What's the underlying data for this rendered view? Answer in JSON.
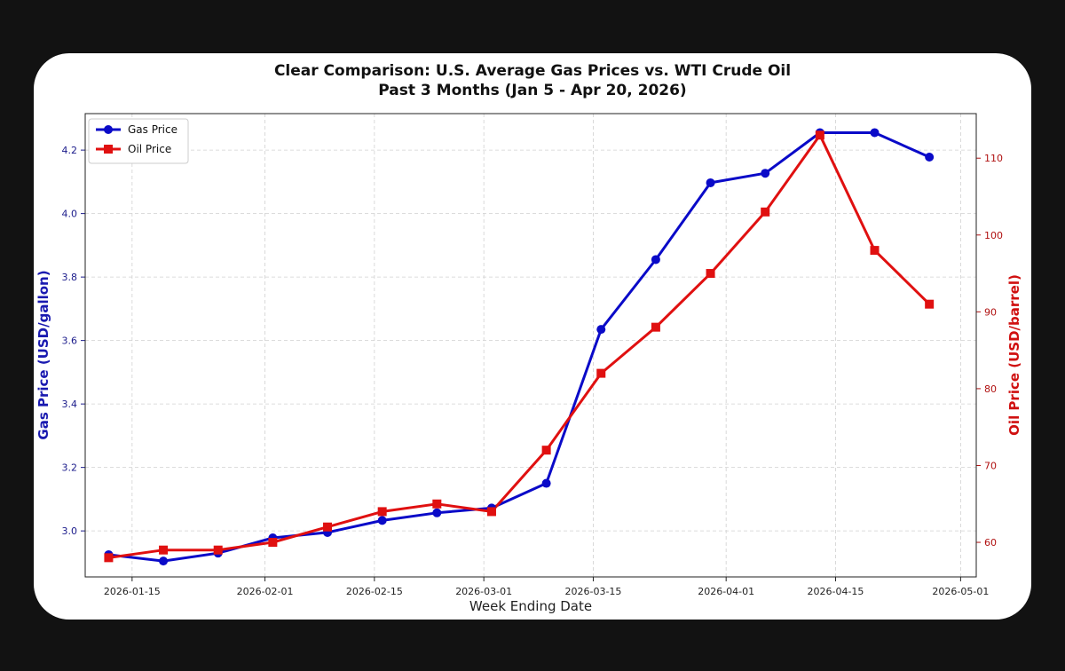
{
  "colors": {
    "gas": "#0a0ac8",
    "oil": "#e01010",
    "grid": "#d0d0d0"
  },
  "chart_data": {
    "type": "line",
    "title": "Clear Comparison: U.S. Average Gas Prices vs. WTI Crude Oil",
    "subtitle": "Past 3 Months (Jan 5 - Apr 20, 2026)",
    "xlabel": "Week Ending Date",
    "x": [
      "2026-01-12",
      "2026-01-19",
      "2026-01-26",
      "2026-02-02",
      "2026-02-09",
      "2026-02-16",
      "2026-02-23",
      "2026-03-02",
      "2026-03-09",
      "2026-03-16",
      "2026-03-23",
      "2026-03-30",
      "2026-04-06",
      "2026-04-13",
      "2026-04-20",
      "2026-04-27"
    ],
    "xlim": [
      "2026-01-09",
      "2026-05-03"
    ],
    "xticks": [
      "2026-01-15",
      "2026-02-01",
      "2026-02-15",
      "2026-03-01",
      "2026-03-15",
      "2026-04-01",
      "2026-04-15",
      "2026-05-01"
    ],
    "series": [
      {
        "name": "Gas Price",
        "axis": "left",
        "marker": "circle",
        "values": [
          2.925,
          2.905,
          2.93,
          2.978,
          2.995,
          3.033,
          3.057,
          3.072,
          3.15,
          3.635,
          3.855,
          4.097,
          4.127,
          4.255,
          4.255,
          4.178
        ]
      },
      {
        "name": "Oil Price",
        "axis": "right",
        "marker": "square",
        "values": [
          58,
          59,
          59,
          60,
          62,
          64,
          65,
          64,
          72,
          82,
          88,
          95,
          103,
          113,
          98,
          91
        ]
      }
    ],
    "yleft": {
      "label": "Gas Price (USD/gallon)",
      "lim": [
        2.855,
        4.315
      ],
      "ticks": [
        "3.0",
        "3.2",
        "3.4",
        "3.6",
        "3.8",
        "4.0",
        "4.2"
      ]
    },
    "yright": {
      "label": "Oil Price (USD/barrel)",
      "lim": [
        55.5,
        115.8
      ],
      "ticks": [
        "60",
        "70",
        "80",
        "90",
        "100",
        "110"
      ]
    },
    "grid": true,
    "legend_position": "top-left"
  }
}
